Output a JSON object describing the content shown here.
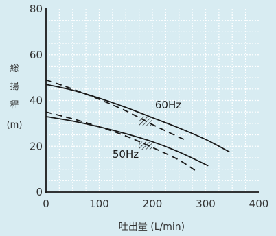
{
  "chart_data": {
    "type": "line",
    "title": "",
    "xlabel": "吐出量 (L/min)",
    "ylabel_chars": [
      "総",
      "揚",
      "程",
      "(m)"
    ],
    "xlim": [
      0,
      400
    ],
    "ylim": [
      0,
      80
    ],
    "x_ticks": [
      0,
      100,
      200,
      300,
      400
    ],
    "y_ticks": [
      0,
      20,
      40,
      60,
      80
    ],
    "x_tick_labels": [
      "0",
      "100",
      "200",
      "300",
      "400"
    ],
    "y_tick_labels": [
      "0",
      "20",
      "40",
      "60",
      "80"
    ],
    "grid": true,
    "minor_grid_step": 25,
    "series": [
      {
        "name": "60Hz",
        "style": "solid",
        "x": [
          0,
          50,
          100,
          150,
          200,
          250,
          300,
          345
        ],
        "y": [
          47,
          44.5,
          41,
          37,
          32.5,
          28,
          23,
          17.5
        ]
      },
      {
        "style": "dashed",
        "x": [
          0,
          50,
          100,
          150,
          200,
          250,
          265
        ],
        "y": [
          49,
          45,
          40.5,
          35.5,
          29.5,
          24,
          22.5
        ]
      },
      {
        "name": "50Hz",
        "style": "solid",
        "x": [
          0,
          50,
          100,
          150,
          200,
          250,
          305
        ],
        "y": [
          33,
          31,
          28.5,
          25.5,
          22,
          17.5,
          11.5
        ]
      },
      {
        "style": "dashed",
        "x": [
          0,
          50,
          100,
          150,
          200,
          250,
          280
        ],
        "y": [
          35,
          32,
          28.5,
          24.5,
          19.5,
          14,
          9.5
        ]
      }
    ],
    "annotations": [
      {
        "text": "60Hz",
        "x": 205,
        "y": 36.5
      },
      {
        "text": "50Hz",
        "x": 125,
        "y": 15
      }
    ],
    "hatched_regions": [
      {
        "x": [
          175,
          200
        ],
        "y": [
          29,
          33
        ]
      },
      {
        "x": [
          175,
          200
        ],
        "y": [
          18.5,
          22
        ]
      }
    ]
  },
  "colors": {
    "background": "#d8ecf2",
    "plot_background": "#d8ecf2",
    "grid": "#ffffff",
    "axis": "#1a1a1a",
    "line": "#1a1a1a",
    "text": "#333333"
  }
}
